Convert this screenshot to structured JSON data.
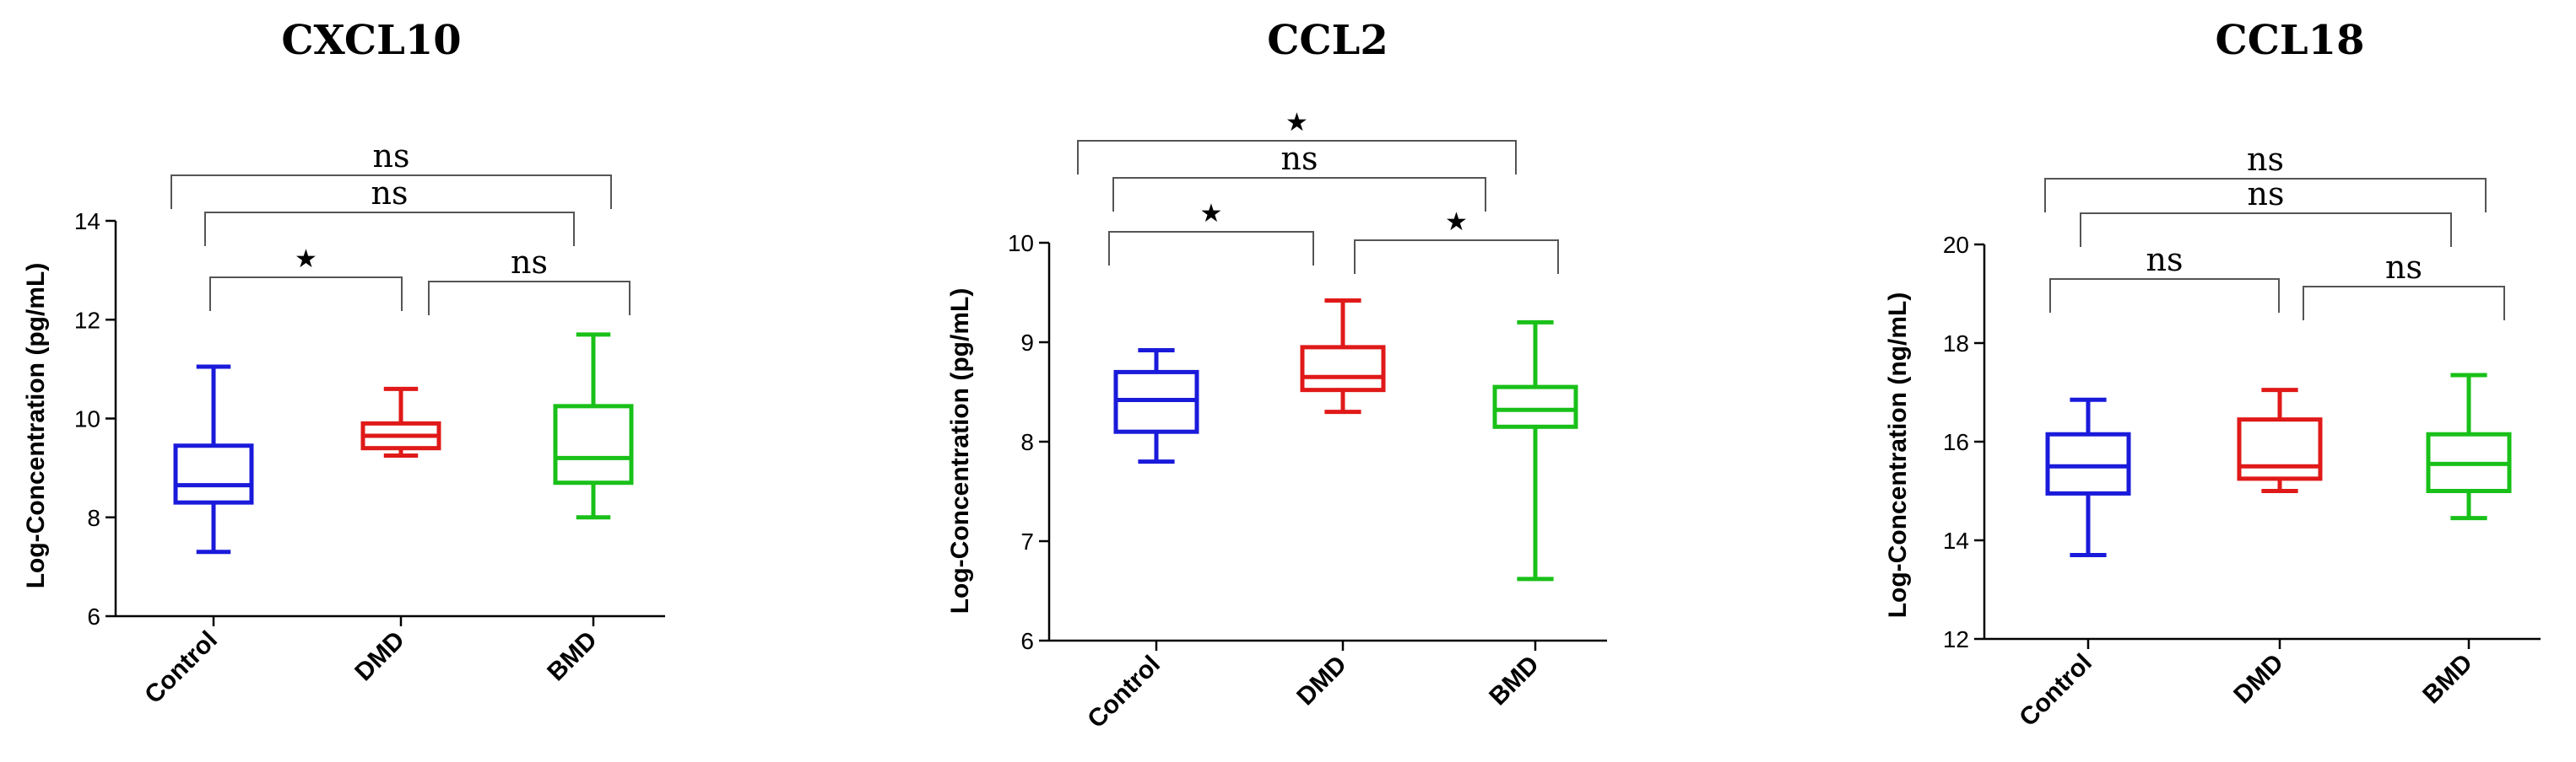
{
  "chart_data": [
    {
      "type": "box",
      "title": "CXCL10",
      "ylabel": "Log-Concentration (pg/mL)",
      "ylim": [
        6,
        14
      ],
      "yticks": [
        6,
        8,
        10,
        12,
        14
      ],
      "categories": [
        "Control",
        "DMD",
        "BMD"
      ],
      "colors": [
        "#1a1adb",
        "#e01919",
        "#19c019"
      ],
      "boxes": [
        {
          "min": 7.3,
          "q1": 8.3,
          "median": 8.65,
          "q3": 9.45,
          "max": 11.05
        },
        {
          "min": 9.25,
          "q1": 9.4,
          "median": 9.65,
          "q3": 9.9,
          "max": 10.6
        },
        {
          "min": 8.0,
          "q1": 8.7,
          "median": 9.2,
          "q3": 10.25,
          "max": 11.7
        }
      ],
      "comparisons": [
        {
          "groups": [
            "Control",
            "BMD"
          ],
          "label": "ns"
        },
        {
          "groups": [
            "Control",
            "BMD"
          ],
          "label": "ns"
        },
        {
          "groups": [
            "Control",
            "DMD"
          ],
          "label": "★"
        },
        {
          "groups": [
            "DMD",
            "BMD"
          ],
          "label": "ns"
        }
      ]
    },
    {
      "type": "box",
      "title": "CCL2",
      "ylabel": "Log-Concentration (pg/mL)",
      "ylim": [
        6,
        10
      ],
      "yticks": [
        6,
        7,
        8,
        9,
        10
      ],
      "categories": [
        "Control",
        "DMD",
        "BMD"
      ],
      "colors": [
        "#1a1adb",
        "#e01919",
        "#19c019"
      ],
      "boxes": [
        {
          "min": 7.8,
          "q1": 8.1,
          "median": 8.42,
          "q3": 8.7,
          "max": 8.92
        },
        {
          "min": 8.3,
          "q1": 8.52,
          "median": 8.65,
          "q3": 8.95,
          "max": 9.42
        },
        {
          "min": 6.62,
          "q1": 8.15,
          "median": 8.32,
          "q3": 8.55,
          "max": 9.2
        }
      ],
      "comparisons": [
        {
          "groups": [
            "Control",
            "BMD"
          ],
          "label": "★"
        },
        {
          "groups": [
            "Control",
            "BMD"
          ],
          "label": "ns"
        },
        {
          "groups": [
            "Control",
            "DMD"
          ],
          "label": "★"
        },
        {
          "groups": [
            "DMD",
            "BMD"
          ],
          "label": "★"
        }
      ]
    },
    {
      "type": "box",
      "title": "CCL18",
      "ylabel": "Log-Concentration (ng/mL)",
      "ylim": [
        12,
        20
      ],
      "yticks": [
        12,
        14,
        16,
        18,
        20
      ],
      "categories": [
        "Control",
        "DMD",
        "BMD"
      ],
      "colors": [
        "#1a1adb",
        "#e01919",
        "#19c019"
      ],
      "boxes": [
        {
          "min": 13.7,
          "q1": 14.95,
          "median": 15.5,
          "q3": 16.15,
          "max": 16.85
        },
        {
          "min": 15.0,
          "q1": 15.25,
          "median": 15.5,
          "q3": 16.45,
          "max": 17.05
        },
        {
          "min": 14.45,
          "q1": 15.0,
          "median": 15.55,
          "q3": 16.15,
          "max": 17.35
        }
      ],
      "comparisons": [
        {
          "groups": [
            "Control",
            "BMD"
          ],
          "label": "ns"
        },
        {
          "groups": [
            "Control",
            "BMD"
          ],
          "label": "ns"
        },
        {
          "groups": [
            "Control",
            "DMD"
          ],
          "label": "ns"
        },
        {
          "groups": [
            "DMD",
            "BMD"
          ],
          "label": "ns"
        }
      ]
    }
  ]
}
